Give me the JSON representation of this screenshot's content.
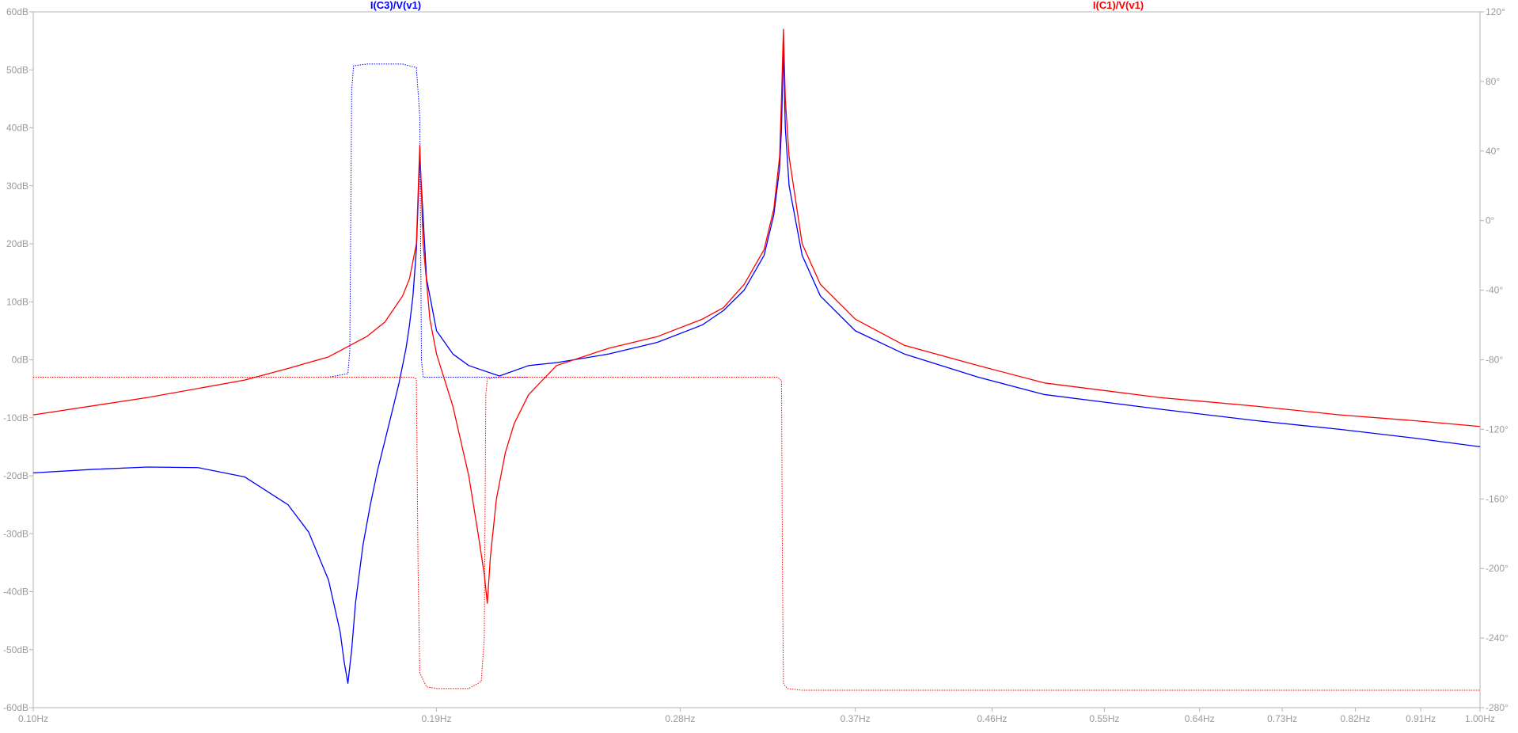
{
  "chart_data": {
    "type": "line",
    "title": "",
    "x_scale": "log",
    "xlim": [
      0.1,
      1.0
    ],
    "x_ticks": [
      0.1,
      0.19,
      0.28,
      0.37,
      0.46,
      0.55,
      0.64,
      0.73,
      0.82,
      0.91,
      1.0
    ],
    "x_tick_labels": [
      "0.10Hz",
      "0.19Hz",
      "0.28Hz",
      "0.37Hz",
      "0.46Hz",
      "0.55Hz",
      "0.64Hz",
      "0.73Hz",
      "0.82Hz",
      "0.91Hz",
      "1.00Hz"
    ],
    "y_left": {
      "unit": "dB",
      "ylim": [
        -60,
        60
      ],
      "ticks": [
        60,
        50,
        40,
        30,
        20,
        10,
        0,
        -10,
        -20,
        -30,
        -40,
        -50,
        -60
      ],
      "tick_labels": [
        "60dB",
        "50dB",
        "40dB",
        "30dB",
        "20dB",
        "10dB",
        "0dB",
        "-10dB",
        "-20dB",
        "-30dB",
        "-40dB",
        "-50dB",
        "-60dB"
      ]
    },
    "y_right": {
      "unit": "deg",
      "ylim": [
        -280,
        120
      ],
      "ticks": [
        120,
        80,
        40,
        0,
        -40,
        -80,
        -120,
        -160,
        -200,
        -240,
        -280
      ],
      "tick_labels": [
        "120°",
        "80°",
        "40°",
        "0°",
        "-40°",
        "-80°",
        "-120°",
        "-160°",
        "-200°",
        "-240°",
        "-280°"
      ]
    },
    "grid": false,
    "series": [
      {
        "name": "I(C3)/V(v1)",
        "color": "#0000ff",
        "magnitude_db": {
          "x": [
            0.1,
            0.11,
            0.12,
            0.13,
            0.14,
            0.15,
            0.155,
            0.16,
            0.163,
            0.164,
            0.165,
            0.166,
            0.167,
            0.169,
            0.171,
            0.173,
            0.175,
            0.177,
            0.179,
            0.181,
            0.182,
            0.183,
            0.184,
            0.185,
            0.187,
            0.19,
            0.195,
            0.2,
            0.21,
            0.22,
            0.23,
            0.25,
            0.27,
            0.29,
            0.3,
            0.31,
            0.32,
            0.325,
            0.328,
            0.329,
            0.33,
            0.331,
            0.333,
            0.34,
            0.35,
            0.37,
            0.4,
            0.45,
            0.5,
            0.6,
            0.7,
            0.8,
            0.9,
            1.0
          ],
          "y": [
            -19.5,
            -18.9,
            -18.5,
            -18.6,
            -20.2,
            -25.0,
            -29.7,
            -38.0,
            -47.0,
            -52.0,
            -55.8,
            -50.0,
            -42.0,
            -32.0,
            -25.0,
            -19.0,
            -14.0,
            -9.0,
            -4.0,
            2.0,
            6.0,
            11.0,
            19.0,
            35.0,
            14.0,
            5.0,
            1.0,
            -1.0,
            -2.8,
            -1.0,
            -0.5,
            1.0,
            3.0,
            6.0,
            8.5,
            12.0,
            18.0,
            25.0,
            33.0,
            40.0,
            54.0,
            40.0,
            30.0,
            18.0,
            11.0,
            5.0,
            1.0,
            -3.0,
            -6.0,
            -8.5,
            -10.5,
            -12.0,
            -13.5,
            -15.0
          ]
        },
        "phase_deg": {
          "x": [
            0.1,
            0.12,
            0.14,
            0.15,
            0.16,
            0.165,
            0.1655,
            0.166,
            0.1665,
            0.17,
            0.18,
            0.184,
            0.185,
            0.1855,
            0.186,
            0.19,
            0.2,
            0.21,
            0.22
          ],
          "y": [
            -90,
            -90,
            -90,
            -90,
            -90,
            -88,
            -75,
            75,
            89,
            90,
            90,
            88,
            60,
            -80,
            -90,
            -90,
            -90,
            -90,
            -90
          ]
        }
      },
      {
        "name": "I(C1)/V(v1)",
        "color": "#ff0000",
        "magnitude_db": {
          "x": [
            0.1,
            0.12,
            0.14,
            0.15,
            0.16,
            0.17,
            0.175,
            0.18,
            0.182,
            0.184,
            0.185,
            0.186,
            0.188,
            0.19,
            0.195,
            0.2,
            0.203,
            0.205,
            0.206,
            0.207,
            0.209,
            0.212,
            0.215,
            0.22,
            0.23,
            0.25,
            0.27,
            0.29,
            0.3,
            0.31,
            0.32,
            0.325,
            0.328,
            0.329,
            0.33,
            0.331,
            0.333,
            0.34,
            0.35,
            0.37,
            0.4,
            0.45,
            0.5,
            0.6,
            0.7,
            0.8,
            0.9,
            1.0
          ],
          "y": [
            -9.5,
            -6.5,
            -3.5,
            -1.5,
            0.5,
            4.0,
            6.5,
            11.0,
            14.0,
            20.0,
            37.0,
            20.0,
            7.0,
            1.0,
            -8.0,
            -20.0,
            -30.0,
            -37.0,
            -42.0,
            -34.0,
            -24.0,
            -16.0,
            -11.0,
            -6.0,
            -1.0,
            2.0,
            4.0,
            7.0,
            9.0,
            13.0,
            19.0,
            26.0,
            35.0,
            45.0,
            57.0,
            45.0,
            35.0,
            20.0,
            13.0,
            7.0,
            2.5,
            -1.0,
            -4.0,
            -6.5,
            -8.0,
            -9.5,
            -10.5,
            -11.5
          ]
        },
        "phase_deg": {
          "x": [
            0.1,
            0.15,
            0.18,
            0.183,
            0.184,
            0.1845,
            0.185,
            0.187,
            0.19,
            0.2,
            0.204,
            0.205,
            0.2055,
            0.206,
            0.21,
            0.25,
            0.3,
            0.327,
            0.329,
            0.3295,
            0.33,
            0.332,
            0.34,
            0.5,
            1.0
          ],
          "y": [
            -90,
            -90,
            -90,
            -90,
            -91,
            -200,
            -260,
            -268,
            -269,
            -269,
            -265,
            -240,
            -100,
            -91,
            -90,
            -90,
            -90,
            -90,
            -92,
            -200,
            -266,
            -269,
            -270,
            -270,
            -270
          ]
        }
      }
    ]
  }
}
